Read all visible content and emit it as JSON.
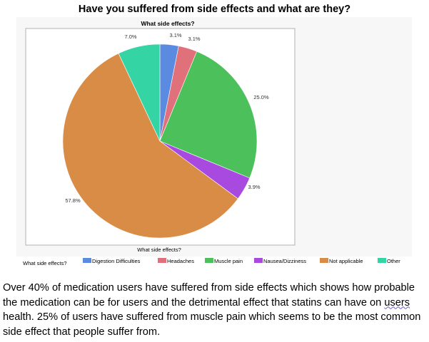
{
  "heading": "Have you suffered from side effects and what are they?",
  "chart_data": {
    "type": "pie",
    "title": "What side effects?",
    "xlabel": "What side effects?",
    "legend_title": "What side effects?",
    "legend_position": "bottom",
    "categories": [
      "Digestion Difficulties",
      "Headaches",
      "Muscle pain",
      "Nausea/Dizziness",
      "Not applicable",
      "Other"
    ],
    "values": [
      3.1,
      3.1,
      25.0,
      3.9,
      57.8,
      7.0
    ],
    "data_labels": [
      "3.1%",
      "3.1%",
      "25.0%",
      "3.9%",
      "57.8%",
      "7.0%"
    ],
    "colors": [
      "#5b8be0",
      "#e0707a",
      "#4cc05a",
      "#a84ae0",
      "#d98c45",
      "#35d4a5"
    ]
  },
  "paragraph": {
    "part1": "Over 40% of medication users have suffered from side effects which shows how probable the medication can be for users and the detrimental effect that statins can have on ",
    "squiggle": "users",
    "part2": " health. 25% of users have suffered from muscle pain which seems to be the most common side effect that people suffer from."
  }
}
